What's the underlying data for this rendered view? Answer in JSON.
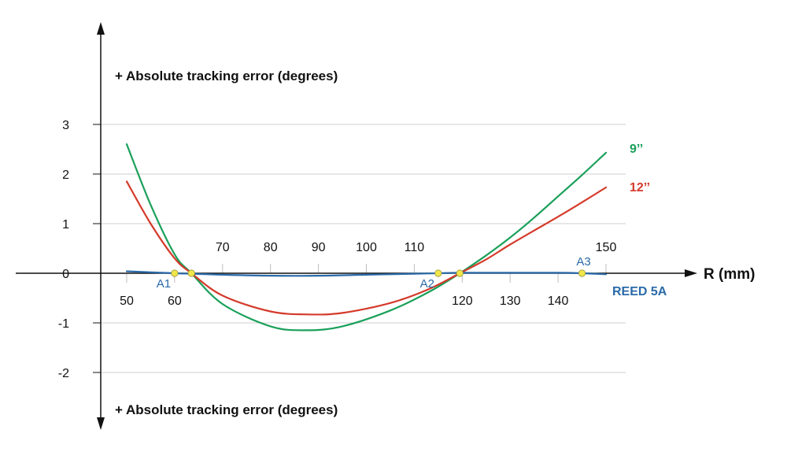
{
  "chart_data": {
    "type": "line",
    "title_top": "+ Absolute tracking error (degrees)",
    "title_bottom": "+ Absolute tracking error (degrees)",
    "xlabel": "R (mm)",
    "ylabel": "",
    "xlim": [
      50,
      150
    ],
    "ylim": [
      -2,
      3
    ],
    "x_ticks_above": [
      70,
      80,
      90,
      100,
      110,
      150
    ],
    "x_ticks_below": [
      50,
      60,
      120,
      130,
      140
    ],
    "y_ticks": [
      3,
      2,
      1,
      0,
      -1,
      -2
    ],
    "grid": true,
    "series": [
      {
        "name": "9’’",
        "color": "#1aa05a",
        "x": [
          50,
          55,
          60,
          63.5,
          70,
          80,
          87.5,
          95,
          105,
          113,
          119.5,
          125,
          130,
          135,
          140,
          145,
          150
        ],
        "y": [
          2.6,
          1.38,
          0.38,
          0.0,
          -0.62,
          -1.07,
          -1.15,
          -1.07,
          -0.75,
          -0.38,
          0.0,
          0.36,
          0.72,
          1.12,
          1.55,
          1.98,
          2.43
        ]
      },
      {
        "name": "12’’",
        "color": "#d43a2a",
        "x": [
          50,
          55,
          60,
          63.5,
          70,
          80,
          88,
          95,
          105,
          113,
          119.5,
          125,
          130,
          135,
          140,
          145,
          150
        ],
        "y": [
          1.85,
          1.0,
          0.3,
          0.0,
          -0.45,
          -0.77,
          -0.83,
          -0.8,
          -0.6,
          -0.32,
          0.0,
          0.28,
          0.58,
          0.86,
          1.14,
          1.43,
          1.73
        ]
      },
      {
        "name": "REED 5A",
        "color": "#2a6aa8",
        "x": [
          50,
          60,
          63.5,
          70,
          80,
          90,
          100,
          110,
          115,
          120,
          130,
          140,
          145,
          150
        ],
        "y": [
          0.04,
          0.0,
          -0.01,
          -0.03,
          -0.05,
          -0.05,
          -0.03,
          -0.01,
          0.0,
          0.01,
          0.01,
          0.01,
          0.0,
          -0.02
        ]
      }
    ],
    "points": [
      {
        "label": "A1",
        "x": 60,
        "y": 0
      },
      {
        "label": "",
        "x": 63.5,
        "y": 0
      },
      {
        "label": "A2",
        "x": 115,
        "y": 0
      },
      {
        "label": "",
        "x": 119.5,
        "y": 0
      },
      {
        "label": "A3",
        "x": 145,
        "y": 0
      }
    ],
    "point_color": "#f1e64a"
  }
}
